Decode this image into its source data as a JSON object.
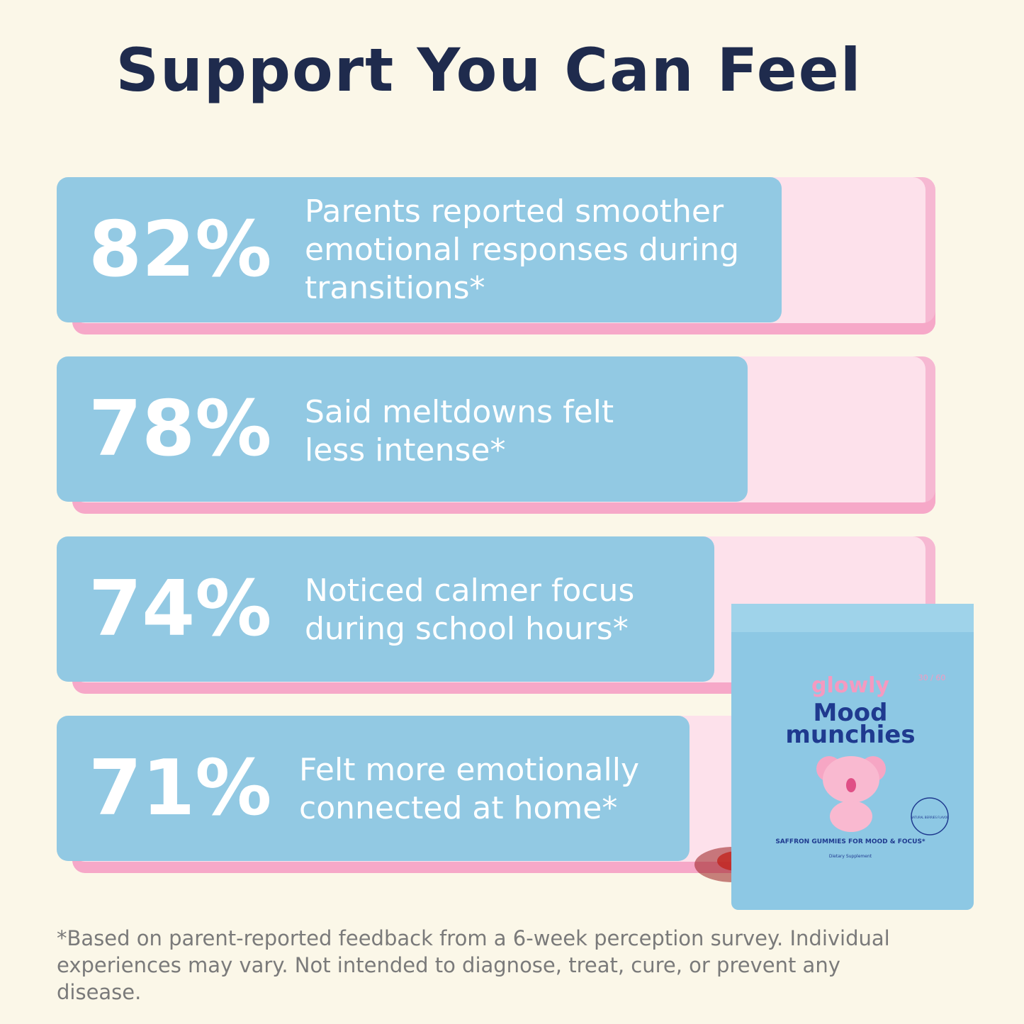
{
  "header": {
    "title": "Support You Can Feel"
  },
  "stats": [
    {
      "percent": "82%",
      "text": "Parents reported smoother emotional responses during transitions*"
    },
    {
      "percent": "78%",
      "text": "Said meltdowns felt less intense*"
    },
    {
      "percent": "74%",
      "text": "Noticed calmer focus during school hours*"
    },
    {
      "percent": "71%",
      "text": "Felt more emotionally connected at home*"
    }
  ],
  "product": {
    "brand": "glowly",
    "count": "30 / 60",
    "name_line1": "Mood",
    "name_line2": "munchies",
    "claim": "SAFFRON GUMMIES FOR MOOD & FOCUS*",
    "type": "Dietary Supplement",
    "flavor": "NATURAL BERRIES FLAVOR"
  },
  "footnote": "*Based on parent-reported feedback from a 6-week perception survey. Individual experiences may vary. Not intended to diagnose, treat, cure, or prevent any disease."
}
